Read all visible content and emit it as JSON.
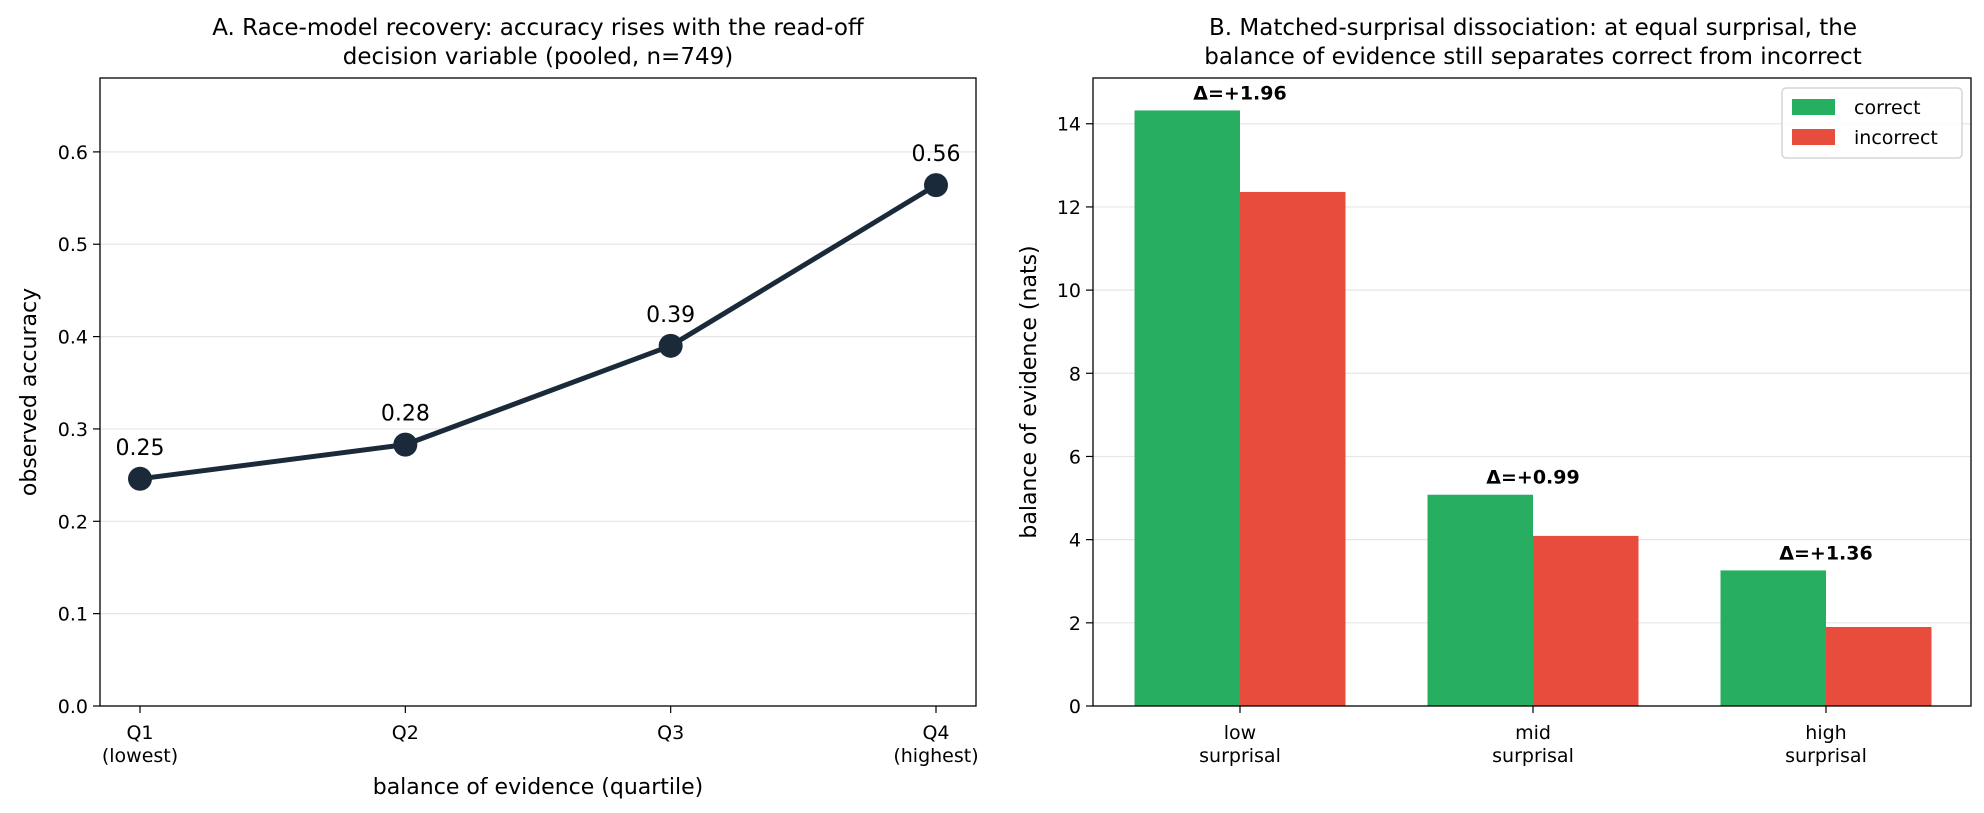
{
  "chart_data": [
    {
      "type": "line",
      "title_lines": [
        "A. Race-model recovery: accuracy rises with the read-off",
        "decision variable (pooled, n=749)"
      ],
      "xlabel": "balance of evidence (quartile)",
      "ylabel": "observed accuracy",
      "categories": [
        [
          "Q1",
          "(lowest)"
        ],
        [
          "Q2",
          ""
        ],
        [
          "Q3",
          ""
        ],
        [
          "Q4",
          "(highest)"
        ]
      ],
      "values": [
        0.246,
        0.283,
        0.39,
        0.564
      ],
      "point_labels": [
        "0.25",
        "0.28",
        "0.39",
        "0.56"
      ],
      "ylim": [
        0,
        0.68
      ],
      "yticks": [
        "0.0",
        "0.1",
        "0.2",
        "0.3",
        "0.4",
        "0.5",
        "0.6"
      ],
      "grid": "horizontal",
      "color": "#1b2a3a"
    },
    {
      "type": "bar",
      "title_lines": [
        "B. Matched-surprisal dissociation: at equal surprisal, the",
        "balance of evidence still separates correct from incorrect"
      ],
      "xlabel": "",
      "ylabel": "balance of evidence (nats)",
      "categories": [
        [
          "low",
          "surprisal"
        ],
        [
          "mid",
          "surprisal"
        ],
        [
          "high",
          "surprisal"
        ]
      ],
      "series": [
        {
          "name": "correct",
          "color": "#27ae60",
          "values": [
            14.32,
            5.08,
            3.26
          ]
        },
        {
          "name": "incorrect",
          "color": "#e74c3c",
          "values": [
            12.36,
            4.09,
            1.9
          ]
        }
      ],
      "annotations": [
        "Δ=+1.96",
        "Δ=+0.99",
        "Δ=+1.36"
      ],
      "ylim": [
        0,
        15.1
      ],
      "yticks": [
        "0",
        "2",
        "4",
        "6",
        "8",
        "10",
        "12",
        "14"
      ],
      "grid": "horizontal",
      "legend": "top-right"
    }
  ]
}
